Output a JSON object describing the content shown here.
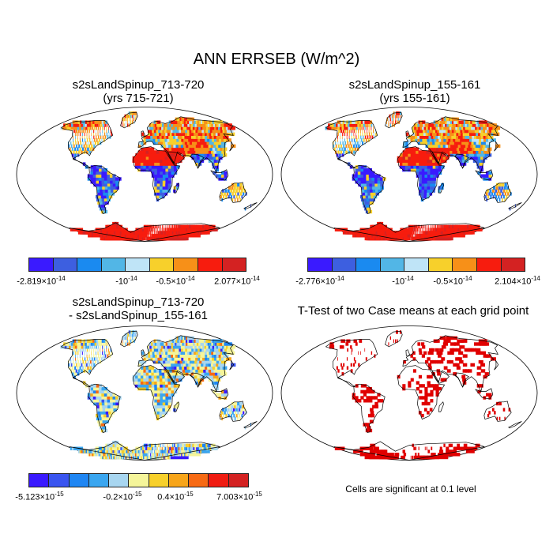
{
  "title": "ANN ERRSEB (W/m^2)",
  "panels": {
    "p1": {
      "title1": "s2sLandSpinup_713-720",
      "title2": "(yrs 715-721)",
      "labels": [
        {
          "m": "-2.819",
          "e": "-14"
        },
        {
          "m": "-10",
          "e": "-14",
          "plain": "true"
        },
        {
          "m": "-0.5",
          "e": "-14"
        },
        {
          "m": "2.077",
          "e": "-14"
        }
      ]
    },
    "p2": {
      "title1": "s2sLandSpinup_155-161",
      "title2": "(yrs 155-161)",
      "labels": [
        {
          "m": "-2.776",
          "e": "-14"
        },
        {
          "m": "-10",
          "e": "-14",
          "plain": "true"
        },
        {
          "m": "-0.5",
          "e": "-14"
        },
        {
          "m": "2.104",
          "e": "-14"
        }
      ]
    },
    "p3": {
      "title1": "s2sLandSpinup_713-720",
      "title2": "- s2sLandSpinup_155-161",
      "labels": [
        {
          "m": "-5.123",
          "e": "-15"
        },
        {
          "m": "-0.2",
          "e": "-15"
        },
        {
          "m": "0.4",
          "e": "-15"
        },
        {
          "m": "7.003",
          "e": "-15"
        }
      ]
    },
    "p4": {
      "title1": "T-Test of two Case means at each grid point",
      "note": "Cells are significant at 0.1 level"
    }
  },
  "colorbars": {
    "abs": [
      "#3a1aff",
      "#3d5fe0",
      "#1a8af0",
      "#52b6e6",
      "#bfe4f7",
      "#f7d02b",
      "#f79018",
      "#f71c0e",
      "#d42222"
    ],
    "diff": [
      "#3a1aff",
      "#3a55f0",
      "#1f86f3",
      "#3aa6f0",
      "#a8d6f0",
      "#f5f59a",
      "#f7d02b",
      "#f7a51a",
      "#f76a14",
      "#f01c12",
      "#d42222"
    ]
  },
  "colors": {
    "sig": "#e00000",
    "coast": "#000000"
  }
}
